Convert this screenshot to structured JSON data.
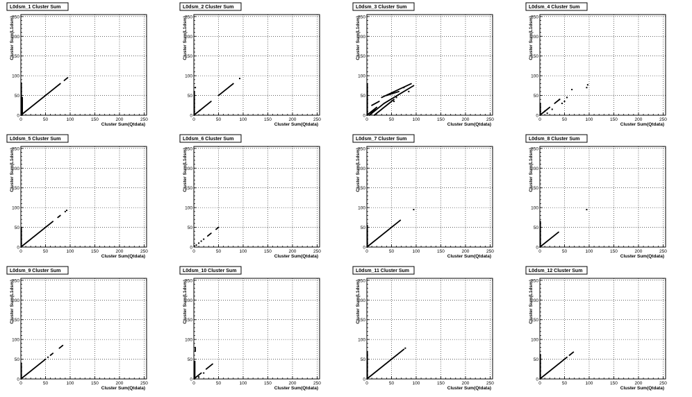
{
  "chart_data": [
    {
      "type": "scatter",
      "title": "L0dsm_1 Cluster Sum",
      "xlabel": "Cluster Sum(Qtdata)",
      "ylabel": "Cluster Sum(L1dsm)",
      "xlim": [
        0,
        255
      ],
      "ylim": [
        0,
        255
      ],
      "xticks": [
        "0",
        "50",
        "100",
        "150",
        "200",
        "250"
      ],
      "yticks": [
        "0",
        "50",
        "100",
        "150",
        "200",
        "250"
      ],
      "segments": [
        [
          0,
          0,
          80,
          80
        ],
        [
          1,
          0,
          1,
          82
        ],
        [
          3,
          0,
          3,
          45
        ],
        [
          88,
          88,
          95,
          95
        ]
      ],
      "points": []
    },
    {
      "type": "scatter",
      "title": "L0dsm_2 Cluster Sum",
      "xlabel": "Cluster Sum(Qtdata)",
      "ylabel": "Cluster Sum(L1dsm)",
      "xlim": [
        0,
        255
      ],
      "ylim": [
        0,
        255
      ],
      "xticks": [
        "0",
        "50",
        "100",
        "150",
        "200",
        "250"
      ],
      "yticks": [
        "0",
        "50",
        "100",
        "150",
        "200",
        "250"
      ],
      "segments": [
        [
          0,
          0,
          35,
          35
        ],
        [
          1,
          0,
          1,
          60
        ],
        [
          50,
          50,
          80,
          80
        ]
      ],
      "points": [
        [
          93,
          93
        ],
        [
          12,
          12
        ],
        [
          3,
          70
        ]
      ]
    },
    {
      "type": "scatter",
      "title": "L0dsm_3 Cluster Sum",
      "xlabel": "Cluster Sum(Qtdata)",
      "ylabel": "Cluster Sum(L1dsm)",
      "xlim": [
        0,
        255
      ],
      "ylim": [
        0,
        255
      ],
      "xticks": [
        "0",
        "50",
        "100",
        "150",
        "200",
        "250"
      ],
      "yticks": [
        "0",
        "50",
        "100",
        "150",
        "200",
        "250"
      ],
      "segments": [
        [
          0,
          0,
          20,
          20
        ],
        [
          1,
          0,
          1,
          80
        ],
        [
          5,
          0,
          35,
          30
        ],
        [
          15,
          0,
          55,
          40
        ],
        [
          30,
          45,
          90,
          80
        ],
        [
          40,
          50,
          65,
          60
        ],
        [
          35,
          30,
          95,
          75
        ],
        [
          10,
          25,
          25,
          35
        ],
        [
          5,
          5,
          20,
          15
        ]
      ],
      "points": [
        [
          55,
          35
        ],
        [
          60,
          45
        ],
        [
          75,
          70
        ],
        [
          85,
          60
        ]
      ]
    },
    {
      "type": "scatter",
      "title": "L0dsm_4 Cluster Sum",
      "xlabel": "Cluster Sum(Qtdata)",
      "ylabel": "Cluster Sum(L1dsm)",
      "xlim": [
        0,
        255
      ],
      "ylim": [
        0,
        255
      ],
      "xticks": [
        "0",
        "50",
        "100",
        "150",
        "200",
        "250"
      ],
      "yticks": [
        "0",
        "50",
        "100",
        "150",
        "200",
        "250"
      ],
      "segments": [
        [
          0,
          0,
          20,
          20
        ],
        [
          1,
          0,
          1,
          30
        ],
        [
          30,
          30,
          40,
          40
        ]
      ],
      "points": [
        [
          10,
          10
        ],
        [
          15,
          5
        ],
        [
          25,
          15
        ],
        [
          45,
          30
        ],
        [
          50,
          35
        ],
        [
          55,
          45
        ],
        [
          65,
          65
        ],
        [
          95,
          70
        ],
        [
          97,
          77
        ],
        [
          40,
          40
        ]
      ]
    },
    {
      "type": "scatter",
      "title": "L0dsm_5 Cluster Sum",
      "xlabel": "Cluster Sum(Qtdata)",
      "ylabel": "Cluster Sum(L1dsm)",
      "xlim": [
        0,
        255
      ],
      "ylim": [
        0,
        255
      ],
      "xticks": [
        "0",
        "50",
        "100",
        "150",
        "200",
        "250"
      ],
      "yticks": [
        "0",
        "50",
        "100",
        "150",
        "200",
        "250"
      ],
      "segments": [
        [
          0,
          0,
          65,
          65
        ],
        [
          1,
          0,
          1,
          50
        ],
        [
          75,
          75,
          80,
          80
        ]
      ],
      "points": [
        [
          90,
          90
        ],
        [
          93,
          93
        ]
      ]
    },
    {
      "type": "scatter",
      "title": "L0dsm_6 Cluster Sum",
      "xlabel": "Cluster Sum(Qtdata)",
      "ylabel": "Cluster Sum(L1dsm)",
      "xlim": [
        0,
        255
      ],
      "ylim": [
        0,
        255
      ],
      "xticks": [
        "0",
        "50",
        "100",
        "150",
        "200",
        "250"
      ],
      "yticks": [
        "0",
        "50",
        "100",
        "150",
        "200",
        "250"
      ],
      "segments": [
        [
          28,
          28,
          35,
          35
        ],
        [
          45,
          45,
          50,
          50
        ]
      ],
      "points": [
        [
          5,
          5
        ],
        [
          10,
          10
        ],
        [
          15,
          15
        ],
        [
          20,
          20
        ],
        [
          1,
          3
        ]
      ]
    },
    {
      "type": "scatter",
      "title": "L0dsm_7 Cluster Sum",
      "xlabel": "Cluster Sum(Qtdata)",
      "ylabel": "Cluster Sum(L1dsm)",
      "xlim": [
        0,
        255
      ],
      "ylim": [
        0,
        255
      ],
      "xticks": [
        "0",
        "50",
        "100",
        "150",
        "200",
        "250"
      ],
      "yticks": [
        "0",
        "50",
        "100",
        "150",
        "200",
        "250"
      ],
      "segments": [
        [
          0,
          0,
          68,
          68
        ],
        [
          1,
          0,
          1,
          55
        ]
      ],
      "points": [
        [
          95,
          95
        ]
      ]
    },
    {
      "type": "scatter",
      "title": "L0dsm_8 Cluster Sum",
      "xlabel": "Cluster Sum(Qtdata)",
      "ylabel": "Cluster Sum(L1dsm)",
      "xlim": [
        0,
        255
      ],
      "ylim": [
        0,
        255
      ],
      "xticks": [
        "0",
        "50",
        "100",
        "150",
        "200",
        "250"
      ],
      "yticks": [
        "0",
        "50",
        "100",
        "150",
        "200",
        "250"
      ],
      "segments": [
        [
          0,
          0,
          38,
          38
        ],
        [
          1,
          0,
          1,
          65
        ]
      ],
      "points": [
        [
          95,
          95
        ]
      ]
    },
    {
      "type": "scatter",
      "title": "L0dsm_9 Cluster Sum",
      "xlabel": "Cluster Sum(Qtdata)",
      "ylabel": "Cluster Sum(L1dsm)",
      "xlim": [
        0,
        255
      ],
      "ylim": [
        0,
        255
      ],
      "xticks": [
        "0",
        "50",
        "100",
        "150",
        "200",
        "250"
      ],
      "yticks": [
        "0",
        "50",
        "100",
        "150",
        "200",
        "250"
      ],
      "segments": [
        [
          0,
          0,
          50,
          50
        ],
        [
          1,
          0,
          1,
          40
        ],
        [
          60,
          60,
          65,
          65
        ],
        [
          78,
          78,
          85,
          85
        ]
      ],
      "points": [
        [
          55,
          55
        ]
      ]
    },
    {
      "type": "scatter",
      "title": "L0dsm_10 Cluster Sum",
      "xlabel": "Cluster Sum(Qtdata)",
      "ylabel": "Cluster Sum(L1dsm)",
      "xlim": [
        0,
        255
      ],
      "ylim": [
        0,
        255
      ],
      "xticks": [
        "0",
        "50",
        "100",
        "150",
        "200",
        "250"
      ],
      "yticks": [
        "0",
        "50",
        "100",
        "150",
        "200",
        "250"
      ],
      "segments": [
        [
          0,
          0,
          15,
          15
        ],
        [
          2,
          0,
          2,
          45
        ],
        [
          3,
          70,
          3,
          80
        ],
        [
          25,
          25,
          38,
          38
        ]
      ],
      "points": [
        [
          10,
          5
        ],
        [
          20,
          15
        ]
      ]
    },
    {
      "type": "scatter",
      "title": "L0dsm_11 Cluster Sum",
      "xlabel": "Cluster Sum(Qtdata)",
      "ylabel": "Cluster Sum(L1dsm)",
      "xlim": [
        0,
        255
      ],
      "ylim": [
        0,
        255
      ],
      "xticks": [
        "0",
        "50",
        "100",
        "150",
        "200",
        "250"
      ],
      "yticks": [
        "0",
        "50",
        "100",
        "150",
        "200",
        "250"
      ],
      "segments": [
        [
          0,
          0,
          75,
          75
        ],
        [
          1,
          0,
          1,
          68
        ]
      ],
      "points": [
        [
          78,
          78
        ]
      ]
    },
    {
      "type": "scatter",
      "title": "L0dsm_12 Cluster Sum",
      "xlabel": "Cluster Sum(Qtdata)",
      "ylabel": "Cluster Sum(L1dsm)",
      "xlim": [
        0,
        255
      ],
      "ylim": [
        0,
        255
      ],
      "xticks": [
        "0",
        "50",
        "100",
        "150",
        "200",
        "250"
      ],
      "yticks": [
        "0",
        "50",
        "100",
        "150",
        "200",
        "250"
      ],
      "segments": [
        [
          0,
          0,
          55,
          55
        ],
        [
          1,
          0,
          1,
          62
        ],
        [
          60,
          60,
          68,
          68
        ]
      ],
      "points": []
    }
  ]
}
